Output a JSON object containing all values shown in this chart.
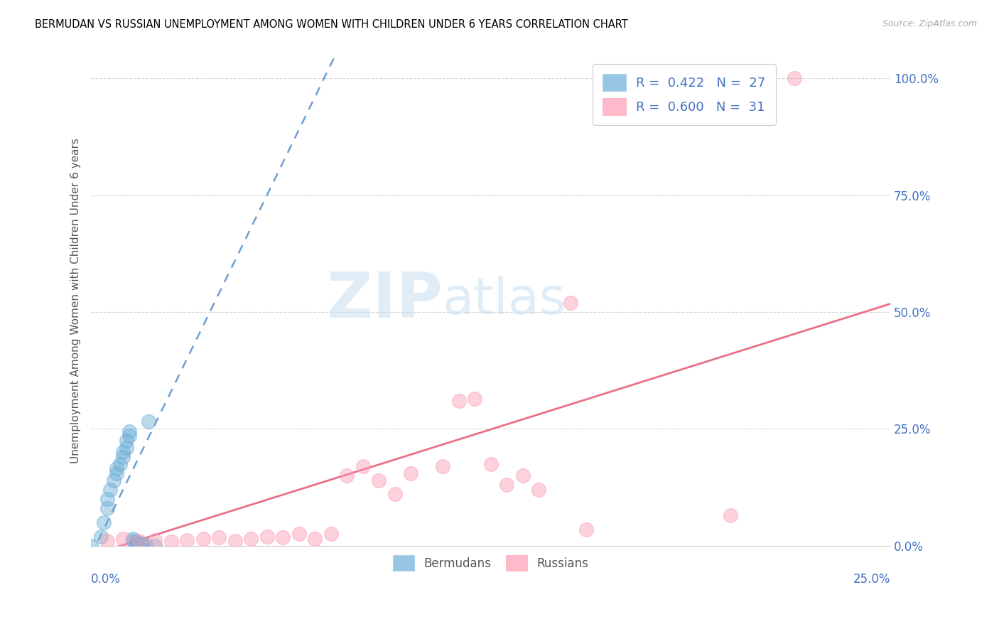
{
  "title": "BERMUDAN VS RUSSIAN UNEMPLOYMENT AMONG WOMEN WITH CHILDREN UNDER 6 YEARS CORRELATION CHART",
  "source": "Source: ZipAtlas.com",
  "ylabel": "Unemployment Among Women with Children Under 6 years",
  "xlim": [
    0.0,
    0.25
  ],
  "ylim": [
    0.0,
    1.05
  ],
  "yticks": [
    0.0,
    0.25,
    0.5,
    0.75,
    1.0
  ],
  "ytick_labels": [
    "0.0%",
    "25.0%",
    "50.0%",
    "75.0%",
    "100.0%"
  ],
  "blue_color": "#6baed6",
  "pink_color": "#fc9db5",
  "blue_line_color": "#3d7fc4",
  "pink_line_color": "#e8607a",
  "watermark_zip": "ZIP",
  "watermark_atlas": "atlas",
  "blue_scatter_x": [
    0.0,
    0.003,
    0.004,
    0.005,
    0.005,
    0.006,
    0.007,
    0.008,
    0.008,
    0.009,
    0.01,
    0.01,
    0.011,
    0.011,
    0.012,
    0.012,
    0.013,
    0.013,
    0.014,
    0.014,
    0.015,
    0.015,
    0.016,
    0.016,
    0.017,
    0.018,
    0.02
  ],
  "blue_scatter_y": [
    0.0,
    0.02,
    0.05,
    0.08,
    0.1,
    0.12,
    0.14,
    0.155,
    0.165,
    0.175,
    0.19,
    0.2,
    0.21,
    0.225,
    0.235,
    0.245,
    0.01,
    0.015,
    0.005,
    0.008,
    0.003,
    0.006,
    0.002,
    0.004,
    0.003,
    0.265,
    0.0
  ],
  "pink_scatter_x": [
    0.005,
    0.01,
    0.015,
    0.02,
    0.025,
    0.03,
    0.035,
    0.04,
    0.045,
    0.05,
    0.055,
    0.06,
    0.065,
    0.07,
    0.075,
    0.08,
    0.085,
    0.09,
    0.095,
    0.1,
    0.11,
    0.115,
    0.12,
    0.125,
    0.13,
    0.135,
    0.14,
    0.15,
    0.155,
    0.2,
    0.22
  ],
  "pink_scatter_y": [
    0.01,
    0.015,
    0.01,
    0.012,
    0.008,
    0.012,
    0.015,
    0.018,
    0.01,
    0.015,
    0.02,
    0.018,
    0.025,
    0.015,
    0.025,
    0.15,
    0.17,
    0.14,
    0.11,
    0.155,
    0.17,
    0.31,
    0.315,
    0.175,
    0.13,
    0.15,
    0.12,
    0.52,
    0.035,
    0.065,
    1.0
  ],
  "blue_line_x": [
    0.0,
    0.25
  ],
  "blue_line_intercept": -0.02,
  "blue_line_slope": 14.0,
  "pink_line_x": [
    0.0,
    0.25
  ],
  "pink_line_intercept": -0.02,
  "pink_line_slope": 2.15
}
